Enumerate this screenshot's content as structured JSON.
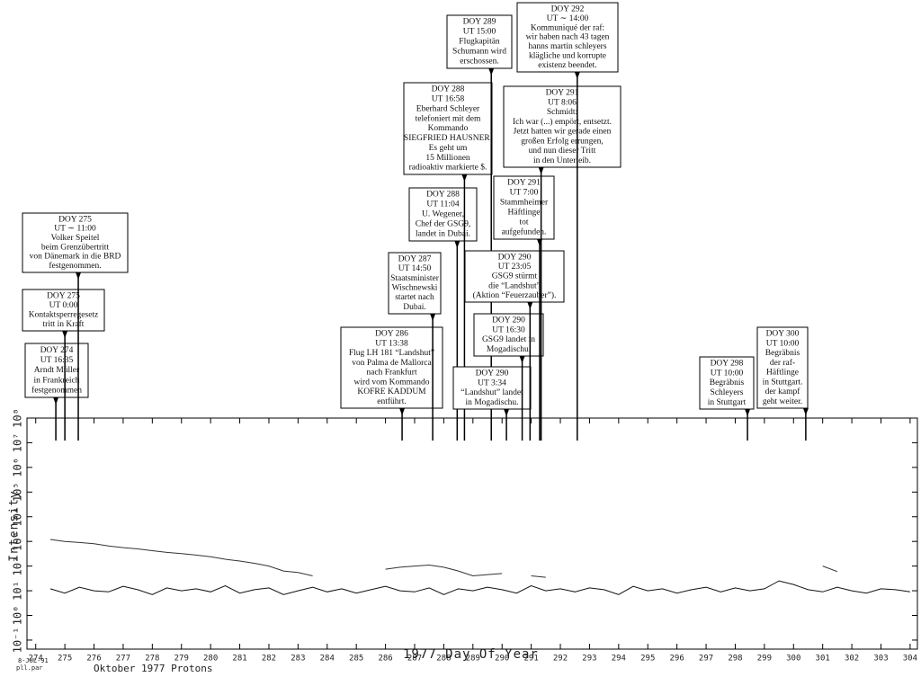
{
  "chart_data": {
    "type": "line",
    "y_label": "Intensity",
    "x_label": "1977 Day Of Year",
    "caption": "Oktober 1977 Protons",
    "stamp": [
      "8-JUL-91",
      "pll.par"
    ],
    "ylog": true,
    "xlim": [
      273.7,
      304.25
    ],
    "ylim": [
      0.043,
      100000000
    ],
    "xticks": [
      274,
      275,
      276,
      277,
      278,
      279,
      280,
      281,
      282,
      283,
      284,
      285,
      286,
      287,
      288,
      289,
      290,
      291,
      292,
      293,
      294,
      295,
      296,
      297,
      298,
      299,
      300,
      301,
      302,
      303,
      304
    ],
    "yticks": [
      {
        "value": 0.1,
        "label": "10⁻¹"
      },
      {
        "value": 1,
        "label": "10⁰"
      },
      {
        "value": 10,
        "label": "10¹"
      },
      {
        "value": 100,
        "label": "10²"
      },
      {
        "value": 1000,
        "label": "10³"
      },
      {
        "value": 10000,
        "label": "10⁴"
      },
      {
        "value": 100000,
        "label": "10⁵"
      },
      {
        "value": 1000000,
        "label": "10⁶"
      },
      {
        "value": 10000000,
        "label": "10⁷"
      },
      {
        "value": 100000000,
        "label": "10⁸"
      }
    ],
    "x": [
      274.5,
      275,
      275.5,
      276,
      276.5,
      277,
      277.5,
      278,
      278.5,
      279,
      279.5,
      280,
      280.5,
      281,
      281.5,
      282,
      282.5,
      283,
      283.5,
      284,
      284.5,
      285,
      285.5,
      286,
      286.5,
      287,
      287.5,
      288,
      288.5,
      289,
      289.5,
      290,
      290.5,
      291,
      291.5,
      292,
      292.5,
      293,
      293.5,
      294,
      294.5,
      295,
      295.5,
      296,
      296.5,
      297,
      297.5,
      298,
      298.5,
      299,
      299.5,
      300,
      300.5,
      301,
      301.5,
      302,
      302.5,
      303,
      303.5,
      304
    ],
    "series": [
      {
        "color": "#333333",
        "values": [
          1200,
          1000,
          900,
          800,
          650,
          560,
          500,
          420,
          360,
          320,
          280,
          240,
          190,
          160,
          130,
          100,
          63,
          55,
          40,
          null,
          null,
          null,
          null,
          75,
          90,
          100,
          110,
          90,
          63,
          40,
          45,
          50,
          null,
          40,
          35,
          null,
          null,
          30,
          null,
          null,
          null,
          null,
          null,
          null,
          null,
          null,
          null,
          null,
          null,
          null,
          null,
          null,
          null,
          100,
          60,
          null,
          null,
          null,
          null,
          null
        ]
      },
      {
        "color": "#111111",
        "values": [
          12,
          8,
          14,
          10,
          9,
          15,
          11,
          7,
          13,
          10,
          12,
          9,
          16,
          8,
          11,
          13,
          7,
          10,
          14,
          9,
          12,
          8,
          11,
          15,
          10,
          9,
          13,
          7,
          12,
          10,
          14,
          11,
          8,
          16,
          10,
          12,
          9,
          13,
          11,
          7,
          15,
          10,
          12,
          8,
          11,
          14,
          9,
          13,
          10,
          12,
          25,
          18,
          11,
          9,
          14,
          10,
          8,
          12,
          11,
          9
        ]
      }
    ],
    "annotations": [
      {
        "x": 274.69,
        "lines": [
          "DOY 274",
          "UT 16:35",
          "Arndt Müller",
          "in Frankreich",
          "festgenommen"
        ]
      },
      {
        "x": 275.0,
        "lines": [
          "DOY 275",
          "UT 0:00",
          "Kontaktsperregesetz",
          "tritt in Kraft"
        ]
      },
      {
        "x": 275.46,
        "lines": [
          "DOY 275",
          "UT ∼ 11:00",
          "Volker Speitel",
          "beim Grenzübertritt",
          "von Dänemark in die BRD",
          "festgenommen."
        ]
      },
      {
        "x": 286.57,
        "lines": [
          "DOY 286",
          "UT 13:38",
          "Flug LH 181 “Landshut”",
          "von Palma de Mallorca",
          "nach Frankfurt",
          "wird vom Kommando",
          "KOFRE KADDUM",
          "entführt."
        ]
      },
      {
        "x": 287.62,
        "lines": [
          "DOY 287",
          "UT 14:50",
          "Staatsminister",
          "Wischnewski",
          "startet nach",
          "Dubai."
        ]
      },
      {
        "x": 288.46,
        "lines": [
          "DOY 288",
          "UT 11:04",
          "U. Wegener,",
          "Chef der GSG9,",
          "landet in Dubai."
        ]
      },
      {
        "x": 288.71,
        "lines": [
          "DOY 288",
          "UT 16:58",
          "Eberhard Schleyer",
          "telefoniert mit dem",
          "Kommando",
          "SIEGFRIED HAUSNER.",
          "Es geht um",
          "15 Millionen",
          "radioaktiv markierte $."
        ]
      },
      {
        "x": 289.63,
        "lines": [
          "DOY 289",
          "UT 15:00",
          "Flugkapitän",
          "Schumann wird",
          "erschossen."
        ]
      },
      {
        "x": 290.15,
        "lines": [
          "DOY 290",
          "UT 3:34",
          "“Landshut” landet",
          "in Mogadischu."
        ]
      },
      {
        "x": 290.69,
        "lines": [
          "DOY 290",
          "UT 16:30",
          "GSG9 landet in",
          "Mogadischu."
        ]
      },
      {
        "x": 290.96,
        "lines": [
          "DOY 290",
          "UT 23:05",
          "GSG9 stürmt",
          "die “Landshut”",
          "(Aktion “Feuerzauber”)."
        ]
      },
      {
        "x": 291.29,
        "lines": [
          "DOY 291",
          "UT 7:00",
          "Stammheimer",
          "Häftlinge",
          "tot",
          "aufgefunden."
        ]
      },
      {
        "x": 291.34,
        "lines": [
          "DOY 291",
          "UT 8:06",
          "Schmidt:",
          "Ich war (...) empört, entsetzt.",
          "Jetzt hatten wir gerade einen",
          "großen Erfolg errungen,",
          "und nun dieser Tritt",
          "in den Unterleib."
        ]
      },
      {
        "x": 292.58,
        "lines": [
          "DOY 292",
          "UT ∼ 14:00",
          "Kommuniqué der raf:",
          "wir haben nach 43 tagen",
          "hanns martin schleyers",
          "klägliche und korrupte",
          "existenz beendet."
        ]
      },
      {
        "x": 298.42,
        "lines": [
          "DOY 298",
          "UT 10:00",
          "Begräbnis",
          "Schleyers",
          "in Stuttgart"
        ]
      },
      {
        "x": 300.42,
        "lines": [
          "DOY 300",
          "UT 10:00",
          "Begräbnis",
          "der raf-",
          "Häftlinge",
          "in Stuttgart.",
          "der kampf",
          "geht weiter."
        ]
      }
    ]
  }
}
